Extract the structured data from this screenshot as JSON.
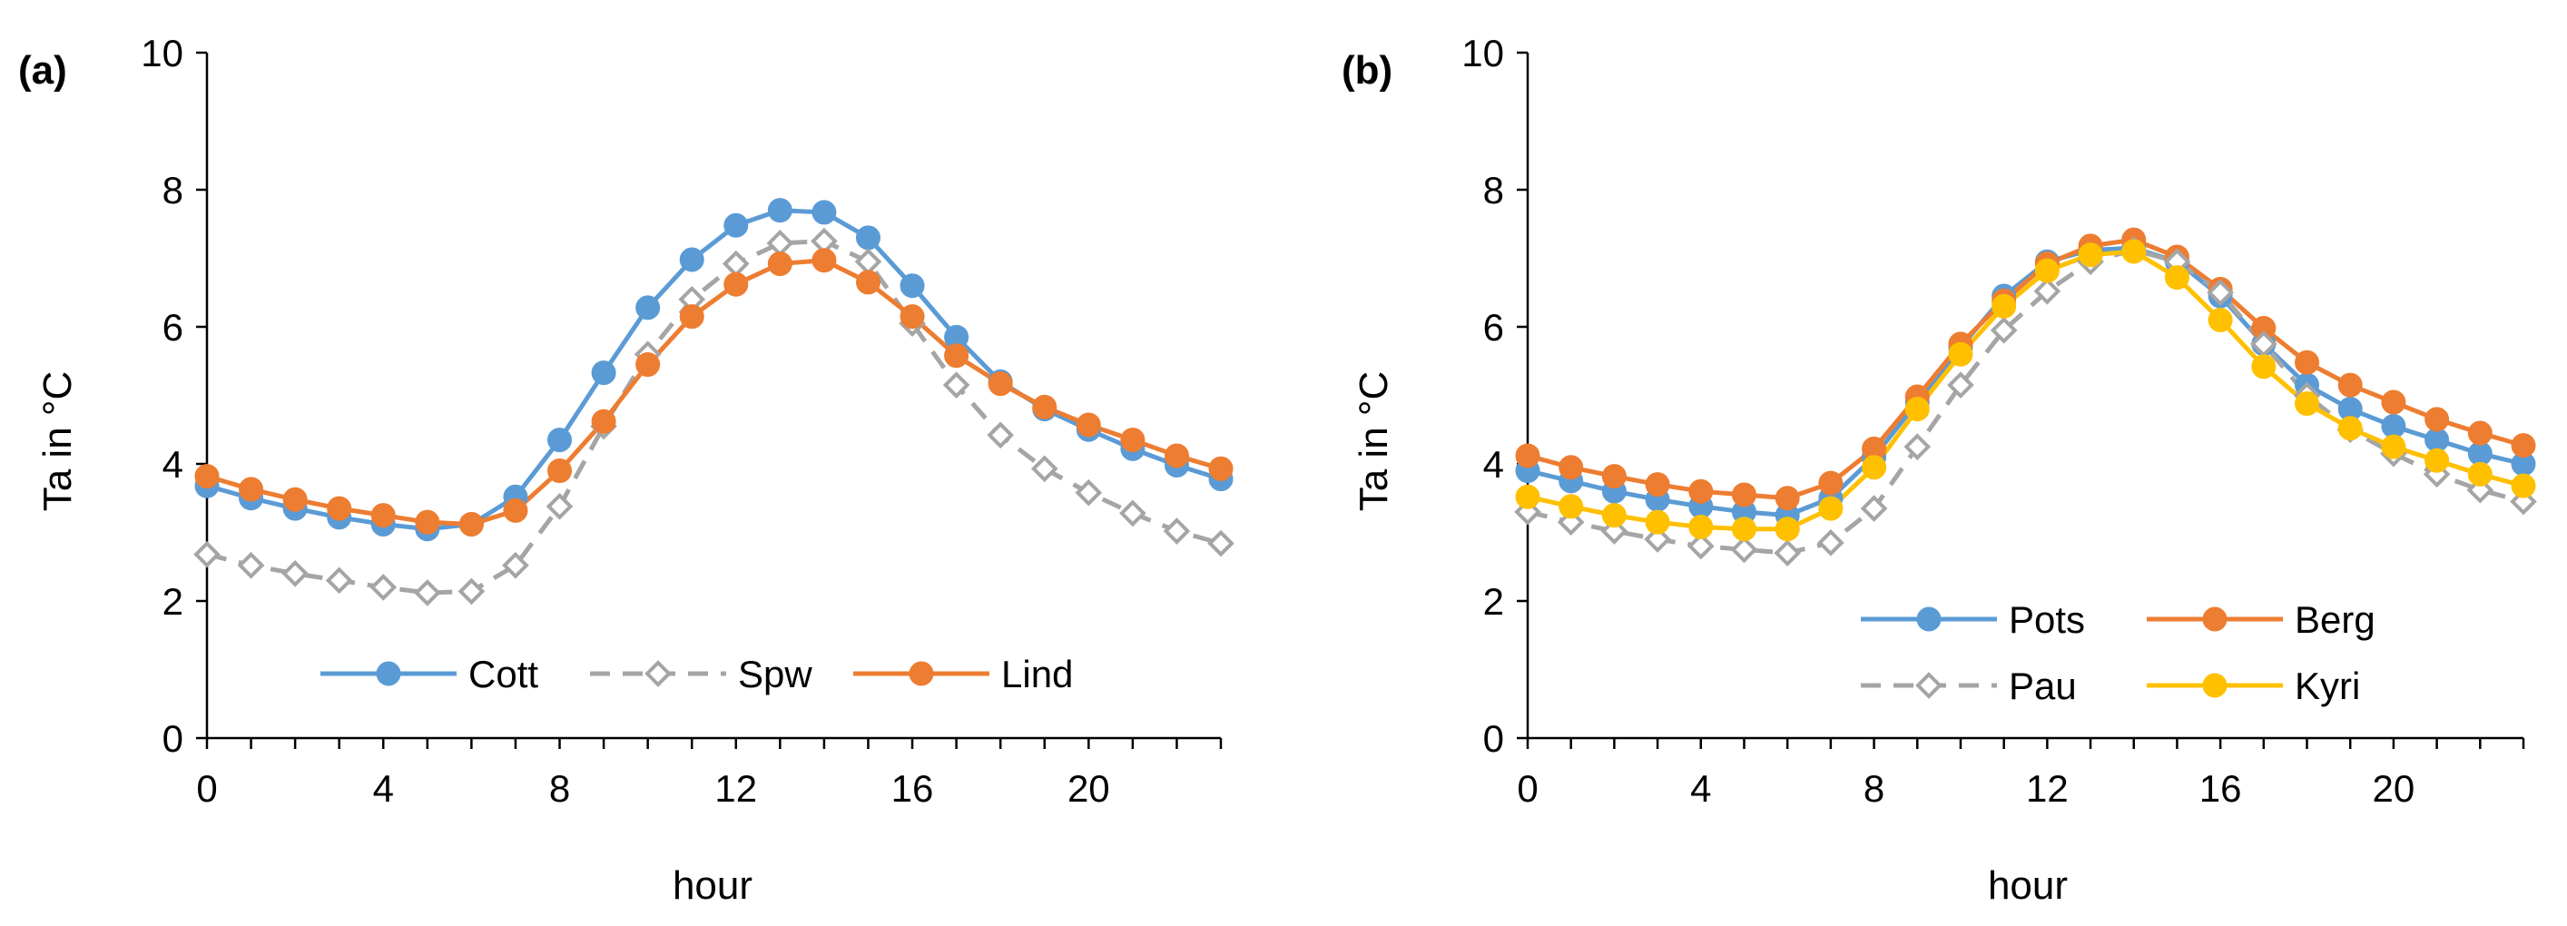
{
  "chart_data": [
    {
      "type": "line",
      "panel_label": "(a)",
      "xlabel": "hour",
      "ylabel": "Ta in °C",
      "xlim": [
        0,
        23
      ],
      "ylim": [
        0,
        10
      ],
      "xticks": [
        0,
        4,
        8,
        12,
        16,
        20
      ],
      "yticks": [
        0,
        2,
        4,
        6,
        8,
        10
      ],
      "grid": false,
      "legend_position": "bottom-center",
      "series": [
        {
          "name": "Cott",
          "color": "#5B9BD5",
          "line_style": "solid",
          "marker": "filled-circle",
          "x": [
            0,
            1,
            2,
            3,
            4,
            5,
            6,
            7,
            8,
            9,
            10,
            11,
            12,
            13,
            14,
            15,
            16,
            17,
            18,
            19,
            20,
            21,
            22,
            23
          ],
          "y": [
            3.68,
            3.5,
            3.35,
            3.22,
            3.12,
            3.05,
            3.12,
            3.52,
            4.35,
            5.33,
            6.28,
            6.98,
            7.48,
            7.7,
            7.67,
            7.3,
            6.6,
            5.85,
            5.2,
            4.8,
            4.5,
            4.22,
            3.98,
            3.78
          ]
        },
        {
          "name": "Spw",
          "color": "#A5A5A5",
          "line_style": "dashed",
          "marker": "open-diamond",
          "x": [
            0,
            1,
            2,
            3,
            4,
            5,
            6,
            7,
            8,
            9,
            10,
            11,
            12,
            13,
            14,
            15,
            16,
            17,
            18,
            19,
            20,
            21,
            22,
            23
          ],
          "y": [
            2.68,
            2.52,
            2.4,
            2.3,
            2.2,
            2.12,
            2.14,
            2.52,
            3.38,
            4.55,
            5.6,
            6.4,
            6.92,
            7.22,
            7.25,
            6.95,
            6.05,
            5.15,
            4.42,
            3.93,
            3.58,
            3.28,
            3.02,
            2.84
          ]
        },
        {
          "name": "Lind",
          "color": "#ED7D31",
          "line_style": "solid",
          "marker": "filled-circle",
          "x": [
            0,
            1,
            2,
            3,
            4,
            5,
            6,
            7,
            8,
            9,
            10,
            11,
            12,
            13,
            14,
            15,
            16,
            17,
            18,
            19,
            20,
            21,
            22,
            23
          ],
          "y": [
            3.82,
            3.63,
            3.48,
            3.35,
            3.25,
            3.15,
            3.12,
            3.32,
            3.9,
            4.62,
            5.45,
            6.15,
            6.62,
            6.92,
            6.97,
            6.65,
            6.15,
            5.58,
            5.17,
            4.83,
            4.57,
            4.35,
            4.12,
            3.93
          ]
        }
      ]
    },
    {
      "type": "line",
      "panel_label": "(b)",
      "xlabel": "hour",
      "ylabel": "Ta in °C",
      "xlim": [
        0,
        23
      ],
      "ylim": [
        0,
        10
      ],
      "xticks": [
        0,
        4,
        8,
        12,
        16,
        20
      ],
      "yticks": [
        0,
        2,
        4,
        6,
        8,
        10
      ],
      "grid": false,
      "legend_position": "bottom-right",
      "series": [
        {
          "name": "Pots",
          "color": "#5B9BD5",
          "line_style": "solid",
          "marker": "filled-circle",
          "x": [
            0,
            1,
            2,
            3,
            4,
            5,
            6,
            7,
            8,
            9,
            10,
            11,
            12,
            13,
            14,
            15,
            16,
            17,
            18,
            19,
            20,
            21,
            22,
            23
          ],
          "y": [
            3.9,
            3.75,
            3.6,
            3.48,
            3.38,
            3.3,
            3.25,
            3.5,
            4.1,
            4.9,
            5.7,
            6.45,
            6.95,
            7.12,
            7.15,
            6.95,
            6.45,
            5.75,
            5.15,
            4.8,
            4.55,
            4.35,
            4.15,
            4.0
          ]
        },
        {
          "name": "Berg",
          "color": "#ED7D31",
          "line_style": "solid",
          "marker": "filled-circle",
          "x": [
            0,
            1,
            2,
            3,
            4,
            5,
            6,
            7,
            8,
            9,
            10,
            11,
            12,
            13,
            14,
            15,
            16,
            17,
            18,
            19,
            20,
            21,
            22,
            23
          ],
          "y": [
            4.12,
            3.95,
            3.82,
            3.7,
            3.6,
            3.55,
            3.5,
            3.72,
            4.22,
            4.98,
            5.75,
            6.38,
            6.92,
            7.18,
            7.27,
            7.02,
            6.55,
            5.98,
            5.48,
            5.15,
            4.9,
            4.65,
            4.45,
            4.27
          ]
        },
        {
          "name": "Pau",
          "color": "#A5A5A5",
          "line_style": "dashed",
          "marker": "open-diamond",
          "x": [
            0,
            1,
            2,
            3,
            4,
            5,
            6,
            7,
            8,
            9,
            10,
            11,
            12,
            13,
            14,
            15,
            16,
            17,
            18,
            19,
            20,
            21,
            22,
            23
          ],
          "y": [
            3.3,
            3.15,
            3.02,
            2.9,
            2.8,
            2.75,
            2.7,
            2.85,
            3.35,
            4.25,
            5.15,
            5.95,
            6.52,
            6.95,
            7.12,
            6.95,
            6.5,
            5.75,
            5.0,
            4.5,
            4.15,
            3.85,
            3.62,
            3.45
          ]
        },
        {
          "name": "Kyri",
          "color": "#FFC000",
          "line_style": "solid",
          "marker": "filled-circle",
          "x": [
            0,
            1,
            2,
            3,
            4,
            5,
            6,
            7,
            8,
            9,
            10,
            11,
            12,
            13,
            14,
            15,
            16,
            17,
            18,
            19,
            20,
            21,
            22,
            23
          ],
          "y": [
            3.52,
            3.38,
            3.25,
            3.15,
            3.08,
            3.05,
            3.05,
            3.35,
            3.95,
            4.8,
            5.6,
            6.3,
            6.82,
            7.05,
            7.1,
            6.72,
            6.1,
            5.42,
            4.88,
            4.52,
            4.25,
            4.05,
            3.85,
            3.68
          ]
        }
      ]
    }
  ]
}
